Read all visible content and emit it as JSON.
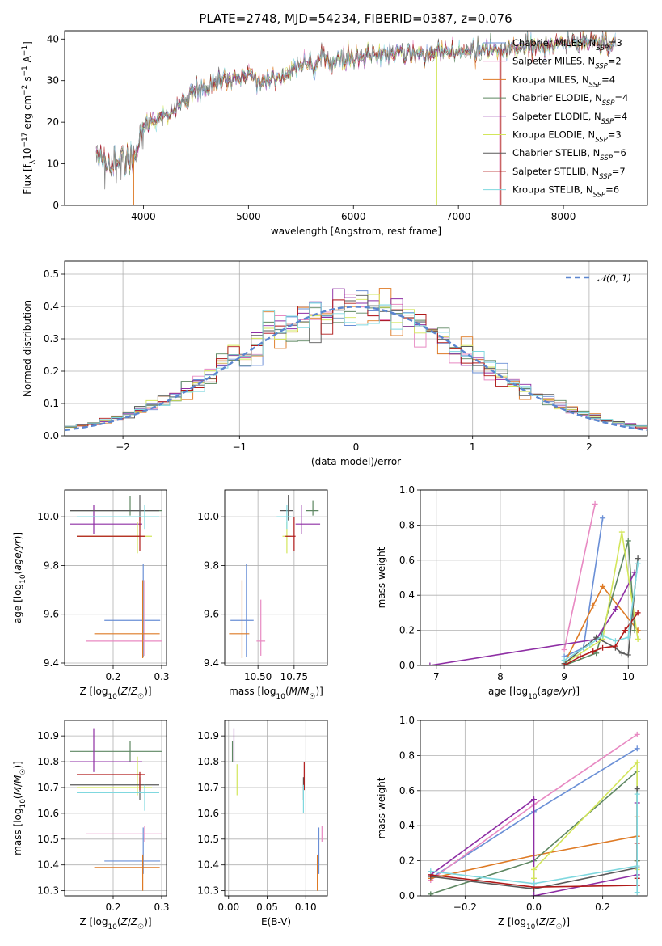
{
  "title": "PLATE=2748, MJD=54234, FIBERID=0387, z=0.076",
  "colors": {
    "Chabrier MILES": "#6a8fd6",
    "Salpeter MILES": "#e889c2",
    "Kroupa MILES": "#de7a25",
    "Chabrier ELODIE": "#5e8762",
    "Salpeter ELODIE": "#8e2ea4",
    "Kroupa ELODIE": "#d3e65b",
    "Chabrier STELIB": "#5a5a5a",
    "Salpeter STELIB": "#b01a1a",
    "Kroupa STELIB": "#7fd8df",
    "data": "#808080",
    "gaussian": "#5b86cf"
  },
  "chart_data": [
    {
      "type": "line",
      "id": "spectrum",
      "xlabel": "wavelength [Angstrom, rest frame]",
      "ylabel": "Flux [f_λ 10^-17 erg cm^-2 s^-1 A^-1]",
      "xlim": [
        3250,
        8800
      ],
      "ylim": [
        0,
        42
      ],
      "xticks": [
        4000,
        5000,
        6000,
        7000,
        8000
      ],
      "yticks": [
        0,
        10,
        20,
        30,
        40
      ],
      "continuum": {
        "x": [
          3550,
          3700,
          3800,
          3900,
          3950,
          4000,
          4100,
          4200,
          4300,
          4400,
          4500,
          4600,
          4700,
          4800,
          4900,
          5000,
          5100,
          5200,
          5300,
          5400,
          5500,
          5600,
          5700,
          5800,
          5900,
          6000,
          6200,
          6400,
          6600,
          6800,
          7000,
          7200,
          7400,
          7600,
          7800,
          8000,
          8200,
          8400,
          8500
        ],
        "y": [
          10,
          9.5,
          10.5,
          11.5,
          14.5,
          19,
          20.5,
          21.5,
          22.5,
          26,
          27.5,
          28,
          29.5,
          30,
          31,
          31.5,
          29.5,
          30.5,
          31.5,
          32.5,
          33.5,
          34,
          34.5,
          35,
          35.5,
          36,
          36.5,
          36.5,
          36.5,
          37,
          37,
          37.5,
          37.5,
          38,
          38.5,
          39,
          39.5,
          39.5,
          38.5
        ]
      },
      "legend": [
        {
          "name": "Chabrier MILES",
          "nssp": 3
        },
        {
          "name": "Salpeter MILES",
          "nssp": 2
        },
        {
          "name": "Kroupa MILES",
          "nssp": 4
        },
        {
          "name": "Chabrier ELODIE",
          "nssp": 4
        },
        {
          "name": "Salpeter ELODIE",
          "nssp": 4
        },
        {
          "name": "Kroupa ELODIE",
          "nssp": 3
        },
        {
          "name": "Chabrier STELIB",
          "nssp": 6
        },
        {
          "name": "Salpeter STELIB",
          "nssp": 7
        },
        {
          "name": "Kroupa STELIB",
          "nssp": 6
        }
      ]
    },
    {
      "type": "histogram",
      "id": "residuals",
      "xlabel": "(data-model)/error",
      "ylabel": "Normed distribution",
      "xlim": [
        -2.5,
        2.5
      ],
      "ylim": [
        0,
        0.54
      ],
      "xticks": [
        -2,
        -1,
        0,
        1,
        2
      ],
      "yticks": [
        0.0,
        0.1,
        0.2,
        0.3,
        0.4,
        0.5
      ],
      "bin_width": 0.1,
      "gaussian_label": "𝒩(0, 1)"
    },
    {
      "type": "errorbar",
      "id": "age-vs-Z",
      "xlabel": "Z [log10(Z/Z☉)]",
      "ylabel": "age [log10(age/yr)]",
      "xlim": [
        0.1,
        0.31
      ],
      "ylim": [
        9.39,
        10.11
      ],
      "xticks": [
        0.2,
        0.3
      ],
      "yticks": [
        9.4,
        9.6,
        9.8,
        10.0
      ],
      "points": [
        {
          "model": "Chabrier MILES",
          "x": 0.262,
          "xerr": [
            0.08,
            0.035
          ],
          "y": 9.575,
          "yerr": [
            0.15,
            0.23
          ]
        },
        {
          "model": "Salpeter MILES",
          "x": 0.265,
          "xerr": [
            0.12,
            0.035
          ],
          "y": 9.49,
          "yerr": [
            0.06,
            0.25
          ]
        },
        {
          "model": "Kroupa MILES",
          "x": 0.261,
          "xerr": [
            0.1,
            0.035
          ],
          "y": 9.52,
          "yerr": [
            0.1,
            0.22
          ]
        },
        {
          "model": "Chabrier ELODIE",
          "x": 0.235,
          "xerr": [
            0.125,
            0.065
          ],
          "y": 10.025,
          "yerr": [
            0.02,
            0.06
          ]
        },
        {
          "model": "Salpeter ELODIE",
          "x": 0.16,
          "xerr": [
            0.05,
            0.1
          ],
          "y": 9.97,
          "yerr": [
            0.04,
            0.08
          ]
        },
        {
          "model": "Kroupa ELODIE",
          "x": 0.25,
          "xerr": [
            0.125,
            0.03
          ],
          "y": 9.92,
          "yerr": [
            0.07,
            0.06
          ]
        },
        {
          "model": "Chabrier STELIB",
          "x": 0.255,
          "xerr": [
            0.145,
            0.04
          ],
          "y": 10.025,
          "yerr": [
            0.04,
            0.065
          ]
        },
        {
          "model": "Salpeter STELIB",
          "x": 0.255,
          "xerr": [
            0.13,
            0.01
          ],
          "y": 9.92,
          "yerr": [
            0.06,
            0.08
          ]
        },
        {
          "model": "Kroupa STELIB",
          "x": 0.265,
          "xerr": [
            0.14,
            0.03
          ],
          "y": 10.0,
          "yerr": [
            0.05,
            0.05
          ]
        }
      ]
    },
    {
      "type": "errorbar",
      "id": "age-vs-mass",
      "xlabel": "mass [log10(M/M☉)]",
      "ylabel": "",
      "xlim": [
        10.27,
        10.98
      ],
      "ylim": [
        9.39,
        10.11
      ],
      "xticks": [
        10.5,
        10.75
      ],
      "xtick_labels": [
        "10.50",
        "10.75"
      ],
      "yticks": [
        9.4,
        9.6,
        9.8,
        10.0
      ],
      "points": [
        {
          "model": "Chabrier MILES",
          "x": 10.42,
          "xerr": [
            0.11,
            0.05
          ],
          "y": 9.575,
          "yerr": [
            0.15,
            0.23
          ]
        },
        {
          "model": "Salpeter MILES",
          "x": 10.52,
          "xerr": [
            0.03,
            0.03
          ],
          "y": 9.49,
          "yerr": [
            0.06,
            0.17
          ]
        },
        {
          "model": "Kroupa MILES",
          "x": 10.39,
          "xerr": [
            0.09,
            0.05
          ],
          "y": 9.52,
          "yerr": [
            0.1,
            0.22
          ]
        },
        {
          "model": "Chabrier ELODIE",
          "x": 10.88,
          "xerr": [
            0.05,
            0.04
          ],
          "y": 10.025,
          "yerr": [
            0.02,
            0.04
          ]
        },
        {
          "model": "Salpeter ELODIE",
          "x": 10.8,
          "xerr": [
            0.04,
            0.13
          ],
          "y": 9.97,
          "yerr": [
            0.04,
            0.08
          ]
        },
        {
          "model": "Kroupa ELODIE",
          "x": 10.7,
          "xerr": [
            0.03,
            0.03
          ],
          "y": 9.92,
          "yerr": [
            0.07,
            0.06
          ]
        },
        {
          "model": "Chabrier STELIB",
          "x": 10.71,
          "xerr": [
            0.06,
            0.03
          ],
          "y": 10.025,
          "yerr": [
            0.04,
            0.065
          ]
        },
        {
          "model": "Salpeter STELIB",
          "x": 10.75,
          "xerr": [
            0.06,
            0.01
          ],
          "y": 9.92,
          "yerr": [
            0.06,
            0.08
          ]
        },
        {
          "model": "Kroupa STELIB",
          "x": 10.7,
          "xerr": [
            0.07,
            0.03
          ],
          "y": 10.0,
          "yerr": [
            0.05,
            0.05
          ]
        }
      ]
    },
    {
      "type": "line",
      "id": "weight-vs-age",
      "xlabel": "age [log10(age/yr)]",
      "ylabel": "mass weight",
      "xlim": [
        6.75,
        10.3
      ],
      "ylim": [
        0,
        1.0
      ],
      "xticks": [
        7,
        8,
        9,
        10
      ],
      "yticks": [
        0.0,
        0.2,
        0.4,
        0.6,
        0.8,
        1.0
      ],
      "series": [
        {
          "model": "Chabrier MILES",
          "x": [
            9.0,
            9.3,
            9.6
          ],
          "y": [
            0.05,
            0.1,
            0.84
          ]
        },
        {
          "model": "Salpeter MILES",
          "x": [
            9.0,
            9.48
          ],
          "y": [
            0.09,
            0.92
          ]
        },
        {
          "model": "Kroupa MILES",
          "x": [
            9.0,
            9.45,
            9.6,
            10.15
          ],
          "y": [
            0.01,
            0.34,
            0.45,
            0.2
          ]
        },
        {
          "model": "Chabrier ELODIE",
          "x": [
            9.0,
            9.5,
            10.0,
            10.1
          ],
          "y": [
            0.0,
            0.07,
            0.71,
            0.2
          ]
        },
        {
          "model": "Salpeter ELODIE",
          "x": [
            6.9,
            9.5,
            9.8,
            10.1
          ],
          "y": [
            0.0,
            0.15,
            0.32,
            0.53
          ]
        },
        {
          "model": "Kroupa ELODIE",
          "x": [
            9.0,
            9.6,
            9.9,
            10.15
          ],
          "y": [
            0.01,
            0.15,
            0.76,
            0.15
          ]
        },
        {
          "model": "Chabrier STELIB",
          "x": [
            9.0,
            9.5,
            9.8,
            9.9,
            10.0,
            10.15
          ],
          "y": [
            0.01,
            0.16,
            0.1,
            0.07,
            0.06,
            0.61
          ]
        },
        {
          "model": "Salpeter STELIB",
          "x": [
            9.0,
            9.25,
            9.45,
            9.6,
            9.8,
            9.95,
            10.15
          ],
          "y": [
            0.0,
            0.05,
            0.08,
            0.1,
            0.11,
            0.2,
            0.3
          ]
        },
        {
          "model": "Kroupa STELIB",
          "x": [
            9.0,
            9.4,
            9.6,
            9.8,
            10.0,
            10.15
          ],
          "y": [
            0.03,
            0.12,
            0.17,
            0.14,
            0.16,
            0.58
          ]
        }
      ]
    },
    {
      "type": "errorbar",
      "id": "mass-vs-Z",
      "xlabel": "Z [log10(Z/Z☉)]",
      "ylabel": "mass [log10(M/M☉)]",
      "xlim": [
        0.1,
        0.31
      ],
      "ylim": [
        10.28,
        10.96
      ],
      "xticks": [
        0.2,
        0.3
      ],
      "yticks": [
        10.3,
        10.4,
        10.5,
        10.6,
        10.7,
        10.8,
        10.9
      ],
      "points": [
        {
          "model": "Chabrier MILES",
          "x": 0.262,
          "xerr": [
            0.08,
            0.035
          ],
          "y": 10.415,
          "yerr": [
            0.05,
            0.13
          ]
        },
        {
          "model": "Salpeter MILES",
          "x": 0.265,
          "xerr": [
            0.12,
            0.035
          ],
          "y": 10.52,
          "yerr": [
            0.03,
            0.03
          ]
        },
        {
          "model": "Kroupa MILES",
          "x": 0.261,
          "xerr": [
            0.1,
            0.035
          ],
          "y": 10.39,
          "yerr": [
            0.09,
            0.05
          ]
        },
        {
          "model": "Chabrier ELODIE",
          "x": 0.235,
          "xerr": [
            0.125,
            0.065
          ],
          "y": 10.84,
          "yerr": [
            0.04,
            0.04
          ]
        },
        {
          "model": "Salpeter ELODIE",
          "x": 0.16,
          "xerr": [
            0.05,
            0.1
          ],
          "y": 10.8,
          "yerr": [
            0.04,
            0.13
          ]
        },
        {
          "model": "Kroupa ELODIE",
          "x": 0.25,
          "xerr": [
            0.125,
            0.03
          ],
          "y": 10.7,
          "yerr": [
            0.03,
            0.12
          ]
        },
        {
          "model": "Chabrier STELIB",
          "x": 0.255,
          "xerr": [
            0.145,
            0.04
          ],
          "y": 10.71,
          "yerr": [
            0.06,
            0.03
          ]
        },
        {
          "model": "Salpeter STELIB",
          "x": 0.255,
          "xerr": [
            0.13,
            0.01
          ],
          "y": 10.75,
          "yerr": [
            0.06,
            0.01
          ]
        },
        {
          "model": "Kroupa STELIB",
          "x": 0.265,
          "xerr": [
            0.14,
            0.03
          ],
          "y": 10.68,
          "yerr": [
            0.07,
            0.03
          ]
        }
      ]
    },
    {
      "type": "errorbar",
      "id": "mass-vs-EBV",
      "xlabel": "E(B-V)",
      "ylabel": "",
      "xlim": [
        -0.005,
        0.128
      ],
      "ylim": [
        10.28,
        10.96
      ],
      "xticks": [
        0.0,
        0.05,
        0.1
      ],
      "xtick_labels": [
        "0.00",
        "0.05",
        "0.10"
      ],
      "yticks": [
        10.3,
        10.4,
        10.5,
        10.6,
        10.7,
        10.8,
        10.9
      ],
      "points": [
        {
          "model": "Chabrier MILES",
          "x": 0.117,
          "y": 10.415,
          "yerr": [
            0.05,
            0.13
          ]
        },
        {
          "model": "Salpeter MILES",
          "x": 0.121,
          "y": 10.52,
          "yerr": [
            0.03,
            0.03
          ]
        },
        {
          "model": "Kroupa MILES",
          "x": 0.115,
          "y": 10.39,
          "yerr": [
            0.09,
            0.05
          ]
        },
        {
          "model": "Chabrier ELODIE",
          "x": 0.005,
          "y": 10.84,
          "yerr": [
            0.04,
            0.04
          ]
        },
        {
          "model": "Salpeter ELODIE",
          "x": 0.007,
          "y": 10.86,
          "yerr": [
            0.06,
            0.07
          ]
        },
        {
          "model": "Kroupa ELODIE",
          "x": 0.011,
          "y": 10.72,
          "yerr": [
            0.05,
            0.07
          ]
        },
        {
          "model": "Chabrier STELIB",
          "x": 0.097,
          "y": 10.71,
          "yerr": [
            0.06,
            0.03
          ]
        },
        {
          "model": "Salpeter STELIB",
          "x": 0.098,
          "y": 10.75,
          "yerr": [
            0.06,
            0.05
          ]
        },
        {
          "model": "Kroupa STELIB",
          "x": 0.097,
          "y": 10.65,
          "yerr": [
            0.05,
            0.06
          ]
        }
      ]
    },
    {
      "type": "line",
      "id": "weight-vs-Z",
      "xlabel": "Z [log10(Z/Z☉)]",
      "ylabel": "mass weight",
      "xlim": [
        -0.33,
        0.33
      ],
      "ylim": [
        0,
        1.0
      ],
      "xticks": [
        -0.2,
        0.0,
        0.2
      ],
      "xtick_labels": [
        "−0.2",
        "0.0",
        "0.2"
      ],
      "yticks": [
        0.0,
        0.2,
        0.4,
        0.6,
        0.8,
        1.0
      ],
      "series": [
        {
          "model": "Chabrier MILES",
          "x": [
            -0.3,
            0.0,
            0.3
          ],
          "y": [
            0.1,
            0.48,
            0.84
          ]
        },
        {
          "model": "Salpeter MILES",
          "x": [
            -0.3,
            0.0,
            0.3
          ],
          "y": [
            0.09,
            0.52,
            0.92
          ]
        },
        {
          "model": "Kroupa MILES",
          "x": [
            -0.3,
            0.0,
            0.3,
            0.3,
            0.3
          ],
          "y": [
            0.1,
            0.23,
            0.34,
            0.45,
            0.2
          ]
        },
        {
          "model": "Chabrier ELODIE",
          "x": [
            -0.3,
            0.0,
            0.3,
            0.3
          ],
          "y": [
            0.01,
            0.2,
            0.71,
            0.2
          ]
        },
        {
          "model": "Salpeter ELODIE",
          "x": [
            -0.3,
            0.0,
            0.0,
            0.3,
            0.3
          ],
          "y": [
            0.12,
            0.55,
            0.0,
            0.12,
            0.53
          ]
        },
        {
          "model": "Kroupa ELODIE",
          "x": [
            0.0,
            0.0,
            0.3,
            0.3
          ],
          "y": [
            0.1,
            0.15,
            0.76,
            0.15
          ]
        },
        {
          "model": "Chabrier STELIB",
          "x": [
            -0.3,
            0.0,
            0.3,
            0.3,
            0.3
          ],
          "y": [
            0.11,
            0.04,
            0.16,
            0.06,
            0.61
          ]
        },
        {
          "model": "Salpeter STELIB",
          "x": [
            -0.3,
            0.0,
            0.3,
            0.3,
            0.3
          ],
          "y": [
            0.12,
            0.05,
            0.06,
            0.1,
            0.3
          ]
        },
        {
          "model": "Kroupa STELIB",
          "x": [
            -0.3,
            0.0,
            0.3,
            0.3,
            0.3
          ],
          "y": [
            0.14,
            0.07,
            0.17,
            0.02,
            0.58
          ]
        }
      ]
    }
  ]
}
